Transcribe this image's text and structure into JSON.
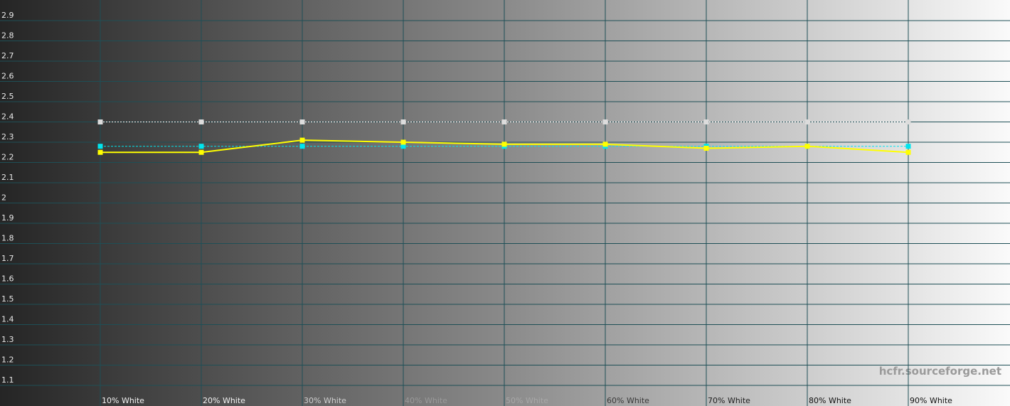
{
  "chart_data": {
    "type": "line",
    "categories": [
      "10% White",
      "20% White",
      "30% White",
      "40% White",
      "50% White",
      "60% White",
      "70% White",
      "80% White",
      "90% White"
    ],
    "series": [
      {
        "color": "#ffffff",
        "style": "dotted",
        "values": [
          2.4,
          2.4,
          2.4,
          2.4,
          2.4,
          2.4,
          2.4,
          2.4,
          2.4
        ]
      },
      {
        "color": "#00e5ee",
        "style": "dashed",
        "values": [
          2.28,
          2.28,
          2.28,
          2.28,
          2.28,
          2.28,
          2.28,
          2.28,
          2.28
        ]
      },
      {
        "color": "#ffff00",
        "style": "solid",
        "values": [
          2.25,
          2.25,
          2.31,
          2.3,
          2.29,
          2.29,
          2.27,
          2.28,
          2.25
        ]
      }
    ],
    "ylim": [
      1,
      3
    ],
    "yticks": [
      1.1,
      1.2,
      1.3,
      1.4,
      1.5,
      1.6,
      1.7,
      1.8,
      1.9,
      2,
      2.1,
      2.2,
      2.3,
      2.4,
      2.5,
      2.6,
      2.7,
      2.8,
      2.9
    ],
    "grid": true,
    "annotation": "hcfr.sourceforge.net"
  }
}
